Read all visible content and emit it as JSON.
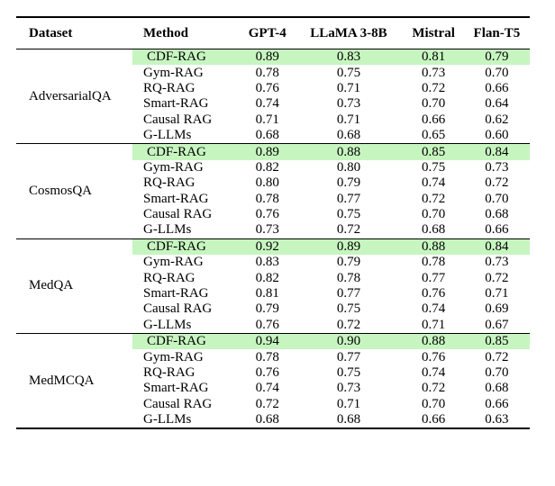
{
  "table": {
    "headers": {
      "dataset": "Dataset",
      "method": "Method",
      "gpt4": "GPT-4",
      "llama": "LLaMA 3-8B",
      "mistral": "Mistral",
      "flan": "Flan-T5"
    },
    "groups": [
      {
        "dataset": "AdversarialQA",
        "rows": [
          {
            "method": "CDF-RAG",
            "values": [
              "0.89",
              "0.83",
              "0.81",
              "0.79"
            ],
            "highlight": true
          },
          {
            "method": "Gym-RAG",
            "values": [
              "0.78",
              "0.75",
              "0.73",
              "0.70"
            ]
          },
          {
            "method": "RQ-RAG",
            "values": [
              "0.76",
              "0.71",
              "0.72",
              "0.66"
            ]
          },
          {
            "method": "Smart-RAG",
            "values": [
              "0.74",
              "0.73",
              "0.70",
              "0.64"
            ]
          },
          {
            "method": "Causal RAG",
            "values": [
              "0.71",
              "0.71",
              "0.66",
              "0.62"
            ]
          },
          {
            "method": "G-LLMs",
            "values": [
              "0.68",
              "0.68",
              "0.65",
              "0.60"
            ]
          }
        ]
      },
      {
        "dataset": "CosmosQA",
        "rows": [
          {
            "method": "CDF-RAG",
            "values": [
              "0.89",
              "0.88",
              "0.85",
              "0.84"
            ],
            "highlight": true
          },
          {
            "method": "Gym-RAG",
            "values": [
              "0.82",
              "0.80",
              "0.75",
              "0.73"
            ]
          },
          {
            "method": "RQ-RAG",
            "values": [
              "0.80",
              "0.79",
              "0.74",
              "0.72"
            ]
          },
          {
            "method": "Smart-RAG",
            "values": [
              "0.78",
              "0.77",
              "0.72",
              "0.70"
            ]
          },
          {
            "method": "Causal RAG",
            "values": [
              "0.76",
              "0.75",
              "0.70",
              "0.68"
            ]
          },
          {
            "method": "G-LLMs",
            "values": [
              "0.73",
              "0.72",
              "0.68",
              "0.66"
            ]
          }
        ]
      },
      {
        "dataset": "MedQA",
        "rows": [
          {
            "method": "CDF-RAG",
            "values": [
              "0.92",
              "0.89",
              "0.88",
              "0.84"
            ],
            "highlight": true
          },
          {
            "method": "Gym-RAG",
            "values": [
              "0.83",
              "0.79",
              "0.78",
              "0.73"
            ]
          },
          {
            "method": "RQ-RAG",
            "values": [
              "0.82",
              "0.78",
              "0.77",
              "0.72"
            ]
          },
          {
            "method": "Smart-RAG",
            "values": [
              "0.81",
              "0.77",
              "0.76",
              "0.71"
            ]
          },
          {
            "method": "Causal RAG",
            "values": [
              "0.79",
              "0.75",
              "0.74",
              "0.69"
            ]
          },
          {
            "method": "G-LLMs",
            "values": [
              "0.76",
              "0.72",
              "0.71",
              "0.67"
            ]
          }
        ]
      },
      {
        "dataset": "MedMCQA",
        "rows": [
          {
            "method": "CDF-RAG",
            "values": [
              "0.94",
              "0.90",
              "0.88",
              "0.85"
            ],
            "highlight": true
          },
          {
            "method": "Gym-RAG",
            "values": [
              "0.78",
              "0.77",
              "0.76",
              "0.72"
            ]
          },
          {
            "method": "RQ-RAG",
            "values": [
              "0.76",
              "0.75",
              "0.74",
              "0.70"
            ]
          },
          {
            "method": "Smart-RAG",
            "values": [
              "0.74",
              "0.73",
              "0.72",
              "0.68"
            ]
          },
          {
            "method": "Causal RAG",
            "values": [
              "0.72",
              "0.71",
              "0.70",
              "0.66"
            ]
          },
          {
            "method": "G-LLMs",
            "values": [
              "0.68",
              "0.68",
              "0.66",
              "0.63"
            ]
          }
        ]
      }
    ],
    "highlight_color": "#c7f5c0"
  }
}
